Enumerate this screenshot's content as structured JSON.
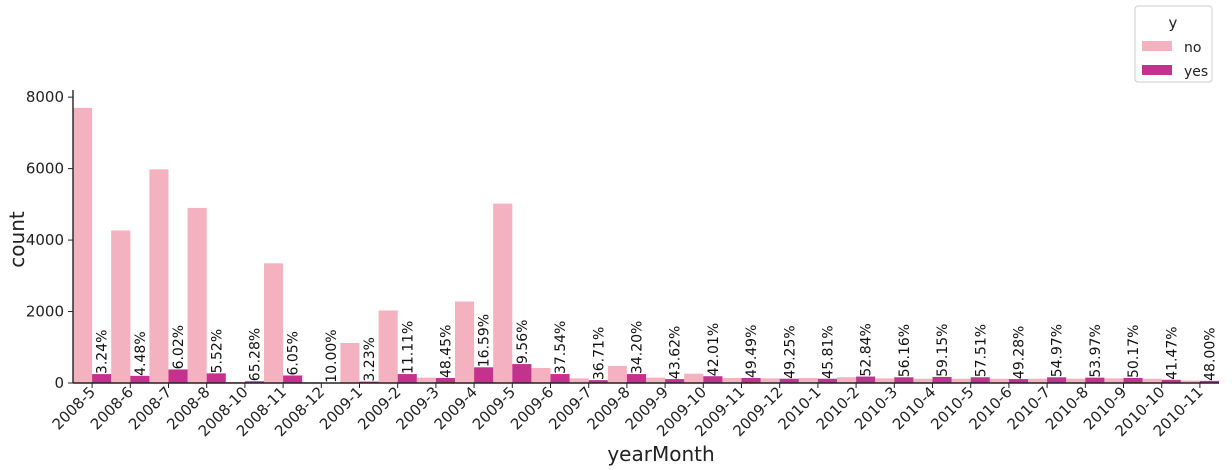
{
  "chart_data": {
    "type": "bar",
    "xlabel": "yearMonth",
    "ylabel": "count",
    "ylim": [
      0,
      8200
    ],
    "yticks": [
      0,
      2000,
      4000,
      6000,
      8000
    ],
    "grid": false,
    "legend": {
      "title": "y",
      "placement": "top-right"
    },
    "categories": [
      "2008-5",
      "2008-6",
      "2008-7",
      "2008-8",
      "2008-10",
      "2008-11",
      "2008-12",
      "2009-1",
      "2009-2",
      "2009-3",
      "2009-4",
      "2009-5",
      "2009-6",
      "2009-7",
      "2009-8",
      "2009-9",
      "2009-10",
      "2009-11",
      "2009-12",
      "2010-1",
      "2010-2",
      "2010-3",
      "2010-4",
      "2010-5",
      "2010-6",
      "2010-7",
      "2010-8",
      "2010-9",
      "2010-10",
      "2010-11"
    ],
    "series": [
      {
        "name": "no",
        "color": "#f4b2c1",
        "values": [
          7700,
          4270,
          5980,
          4900,
          30,
          3350,
          20,
          1120,
          2030,
          150,
          2280,
          5020,
          420,
          130,
          480,
          150,
          260,
          140,
          130,
          140,
          160,
          130,
          120,
          120,
          120,
          120,
          120,
          130,
          120,
          70
        ]
      },
      {
        "name": "yes",
        "color": "#c2338e",
        "values": [
          250,
          200,
          380,
          270,
          50,
          210,
          5,
          40,
          250,
          140,
          440,
          530,
          250,
          80,
          250,
          110,
          190,
          140,
          120,
          120,
          180,
          160,
          170,
          160,
          110,
          160,
          150,
          140,
          90,
          60
        ]
      }
    ],
    "annotations": [
      "3.24%",
      "4.48%",
      "6.02%",
      "5.52%",
      "65.28%",
      "6.05%",
      "10.00%",
      "3.23%",
      "11.11%",
      "48.45%",
      "16.59%",
      "9.56%",
      "37.54%",
      "36.71%",
      "34.20%",
      "43.62%",
      "42.01%",
      "49.49%",
      "49.25%",
      "45.81%",
      "52.84%",
      "56.16%",
      "59.15%",
      "57.51%",
      "49.28%",
      "54.97%",
      "53.97%",
      "50.17%",
      "41.47%",
      "48.00%"
    ]
  }
}
